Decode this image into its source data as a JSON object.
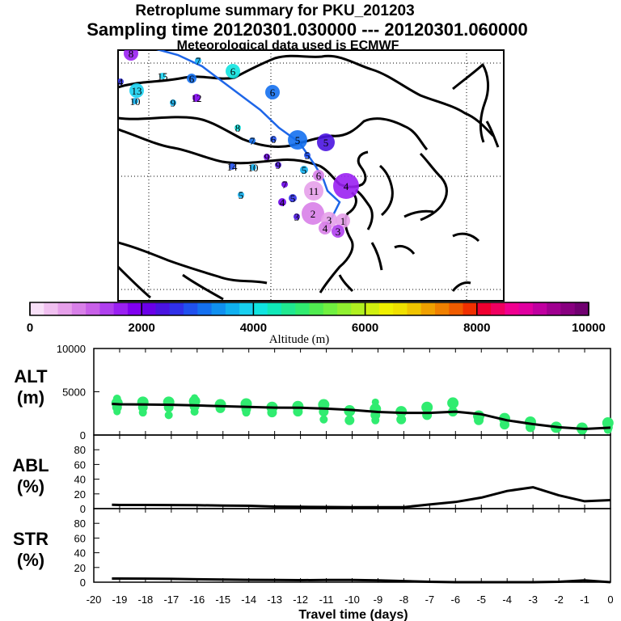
{
  "title": {
    "line1": "Retroplume summary for PKU_201203",
    "line2": "Sampling time   20120301.030000 --- 20120301.060000",
    "line3": "Meteorological data used is ECMWF"
  },
  "colorbar": {
    "label": "Altitude (m)",
    "ticks": [
      "0",
      "2000",
      "4000",
      "6000",
      "8000",
      "10000"
    ],
    "colors": [
      "#f8e0f8",
      "#f0c0f0",
      "#e6a0ea",
      "#d880e8",
      "#c860e8",
      "#b040ee",
      "#9a20f2",
      "#8000f0",
      "#6a00e8",
      "#4a14e0",
      "#3030e8",
      "#2050ee",
      "#1470f0",
      "#1090f0",
      "#10b0f0",
      "#18d0f0",
      "#10e4e0",
      "#10e8b8",
      "#20e890",
      "#30ec70",
      "#50ec50",
      "#70f040",
      "#90f030",
      "#b0f020",
      "#d0f010",
      "#f0f000",
      "#f0e000",
      "#f0c400",
      "#f0a000",
      "#f08000",
      "#f05c00",
      "#f03000",
      "#f00030",
      "#f00060",
      "#f00090",
      "#e000a0",
      "#c000a0",
      "#a00090",
      "#880080",
      "#700070"
    ]
  },
  "map": {
    "trajectory_color": "#1e66e8",
    "points": [
      {
        "label": "8",
        "color": "#9a20f2"
      },
      {
        "label": "7",
        "color": "#10b0f0"
      },
      {
        "label": "6",
        "color": "#10e4e0"
      },
      {
        "label": "15",
        "color": "#18d0f0"
      },
      {
        "label": "13",
        "color": "#18d0f0"
      },
      {
        "label": "10",
        "color": "#10b0f0"
      },
      {
        "label": "9",
        "color": "#10b0f0"
      },
      {
        "label": "12",
        "color": "#8000f0"
      },
      {
        "label": "4",
        "color": "#3030e8"
      },
      {
        "label": "6",
        "color": "#1470f0"
      },
      {
        "label": "6",
        "color": "#1470f0"
      },
      {
        "label": "8",
        "color": "#10e4e0"
      },
      {
        "label": "7",
        "color": "#1470f0"
      },
      {
        "label": "6",
        "color": "#2050ee"
      },
      {
        "label": "5",
        "color": "#1470f0"
      },
      {
        "label": "5",
        "color": "#4a14e0"
      },
      {
        "label": "9",
        "color": "#6a00e8"
      },
      {
        "label": "14",
        "color": "#2050ee"
      },
      {
        "label": "10",
        "color": "#10b0f0"
      },
      {
        "label": "9",
        "color": "#4a14e0"
      },
      {
        "label": "5",
        "color": "#2050ee"
      },
      {
        "label": "5",
        "color": "#10b0f0"
      },
      {
        "label": "5",
        "color": "#10b0f0"
      },
      {
        "label": "7",
        "color": "#6a00e8"
      },
      {
        "label": "4",
        "color": "#6a00e8"
      },
      {
        "label": "5",
        "color": "#3030e8"
      },
      {
        "label": "6",
        "color": "#d880e8"
      },
      {
        "label": "11",
        "color": "#e6a0ea"
      },
      {
        "label": "4",
        "color": "#9a20f2"
      },
      {
        "label": "3",
        "color": "#4a14e0"
      },
      {
        "label": "2",
        "color": "#d880e8"
      },
      {
        "label": "3",
        "color": "#e6a0ea"
      },
      {
        "label": "4",
        "color": "#d880e8"
      },
      {
        "label": "1",
        "color": "#e6a0ea"
      },
      {
        "label": "3",
        "color": "#b040ee"
      }
    ]
  },
  "chart_data": {
    "type": "line",
    "xlabel": "Travel time (days)",
    "x": [
      -19.3,
      -19,
      -18,
      -17,
      -16,
      -15,
      -14,
      -13,
      -12,
      -11,
      -10,
      -9,
      -8,
      -7,
      -6,
      -5,
      -4,
      -3,
      -2,
      -1,
      0
    ],
    "xticks": [
      "-20",
      "-19",
      "-18",
      "-17",
      "-16",
      "-15",
      "-14",
      "-13",
      "-12",
      "-11",
      "-10",
      "-9",
      "-8",
      "-7",
      "-6",
      "-5",
      "-4",
      "-3",
      "-2",
      "-1",
      "0"
    ],
    "xlim": [
      -20,
      0
    ],
    "panels": [
      {
        "ylabel_line1": "ALT",
        "ylabel_line2": "(m)",
        "ylim": [
          0,
          10000
        ],
        "yticks": [
          "0",
          "5000",
          "10000"
        ],
        "line": [
          3600,
          3550,
          3520,
          3500,
          3420,
          3330,
          3240,
          3170,
          3150,
          3050,
          2900,
          2660,
          2560,
          2560,
          2700,
          2400,
          1700,
          1260,
          900,
          700,
          850
        ],
        "cluster_color": "#30ec70",
        "clusters": [
          {
            "x": -19.1,
            "y": [
              3700,
              3200,
              4200,
              2700
            ]
          },
          {
            "x": -18.1,
            "y": [
              3800,
              3200,
              2600
            ]
          },
          {
            "x": -17.1,
            "y": [
              3800,
              3200,
              2300
            ]
          },
          {
            "x": -16.1,
            "y": [
              3900,
              3300,
              2700,
              4300
            ]
          },
          {
            "x": -15.1,
            "y": [
              3500,
              3100
            ]
          },
          {
            "x": -14.1,
            "y": [
              3600,
              3000,
              2600
            ]
          },
          {
            "x": -13.1,
            "y": [
              3200,
              2600
            ]
          },
          {
            "x": -12.1,
            "y": [
              3300,
              2700
            ]
          },
          {
            "x": -11.1,
            "y": [
              3500,
              2700,
              1800
            ]
          },
          {
            "x": -10.1,
            "y": [
              2800,
              1700
            ]
          },
          {
            "x": -9.1,
            "y": [
              3000,
              2300,
              1700,
              3800
            ]
          },
          {
            "x": -8.1,
            "y": [
              2700,
              1800
            ]
          },
          {
            "x": -7.1,
            "y": [
              3200,
              2300
            ]
          },
          {
            "x": -6.1,
            "y": [
              3700,
              2700
            ]
          },
          {
            "x": -5.1,
            "y": [
              2200,
              1700
            ]
          },
          {
            "x": -4.1,
            "y": [
              1900,
              1200
            ]
          },
          {
            "x": -3.1,
            "y": [
              1500,
              900
            ]
          },
          {
            "x": -2.1,
            "y": [
              900
            ]
          },
          {
            "x": -1.1,
            "y": [
              800,
              600
            ]
          },
          {
            "x": -0.1,
            "y": [
              1400,
              900,
              600
            ]
          }
        ]
      },
      {
        "ylabel_line1": "ABL",
        "ylabel_line2": "(%)",
        "ylim": [
          0,
          100
        ],
        "yticks": [
          "0",
          "20",
          "40",
          "60",
          "80"
        ],
        "line": [
          5.3,
          5,
          5,
          4.8,
          4.6,
          4.2,
          3.8,
          2.8,
          2.4,
          2.2,
          1.9,
          1.9,
          2,
          5.6,
          9,
          15,
          24,
          29,
          18,
          10,
          11.5
        ]
      },
      {
        "ylabel_line1": "STR",
        "ylabel_line2": "(%)",
        "ylim": [
          0,
          100
        ],
        "yticks": [
          "0",
          "20",
          "40",
          "60",
          "80"
        ],
        "line": [
          5,
          5,
          4.8,
          4.5,
          4,
          3.5,
          3.2,
          3,
          2.8,
          3,
          3,
          2.5,
          1.5,
          0.5,
          0,
          0,
          0,
          0,
          0.5,
          2.5,
          0
        ]
      }
    ]
  }
}
